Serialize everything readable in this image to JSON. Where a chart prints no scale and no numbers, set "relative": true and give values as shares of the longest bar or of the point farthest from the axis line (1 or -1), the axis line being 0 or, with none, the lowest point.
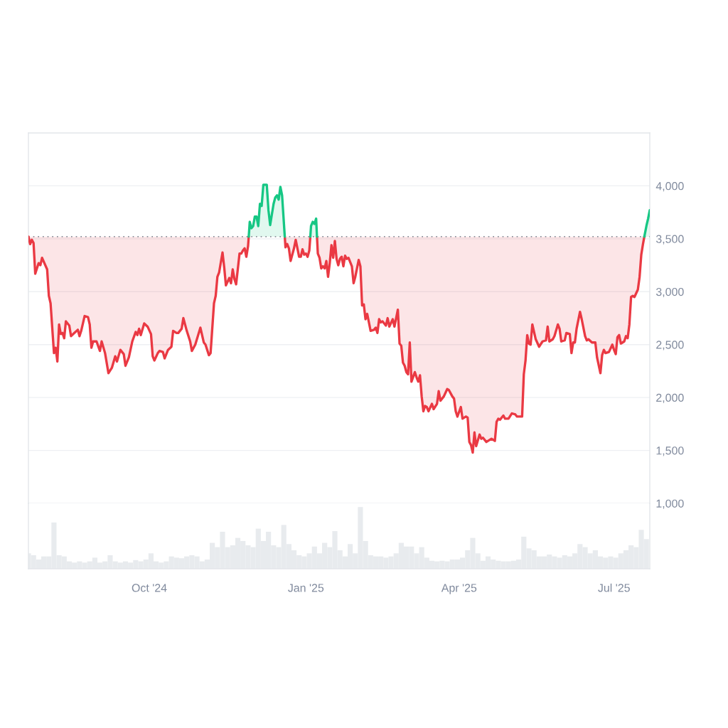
{
  "chart_data": [
    {
      "type": "line",
      "xlim": [
        "2024-07-22",
        "2025-07-22"
      ],
      "ylim": [
        1000,
        4500
      ],
      "yticks": [
        {
          "value": 1000,
          "label": "1,000"
        },
        {
          "value": 1500,
          "label": "1,500"
        },
        {
          "value": 2000,
          "label": "2,000"
        },
        {
          "value": 2500,
          "label": "2,500"
        },
        {
          "value": 3000,
          "label": "3,000"
        },
        {
          "value": 3500,
          "label": "3,500"
        },
        {
          "value": 4000,
          "label": "4,000"
        }
      ],
      "tick_labels": "y",
      "grid": "y",
      "ref_lines": [
        {
          "axis": "y",
          "value": 3520,
          "color": "#8a8f99",
          "line_style": "dotted"
        }
      ],
      "series": [
        {
          "color": "#ea3943",
          "x": [
            "2024-07-22",
            "2024-07-23",
            "2024-07-24",
            "2024-07-25",
            "2024-07-26",
            "2024-07-28",
            "2024-07-29",
            "2024-07-30",
            "2024-08-02",
            "2024-08-03",
            "2024-08-04",
            "2024-08-06",
            "2024-08-07",
            "2024-08-08",
            "2024-08-09",
            "2024-08-10",
            "2024-08-11",
            "2024-08-12",
            "2024-08-13",
            "2024-08-15",
            "2024-08-16",
            "2024-08-18",
            "2024-08-20",
            "2024-08-21",
            "2024-08-22",
            "2024-08-24",
            "2024-08-26",
            "2024-08-27",
            "2024-08-28",
            "2024-08-29",
            "2024-08-31",
            "2024-09-02",
            "2024-09-03",
            "2024-09-05",
            "2024-09-07",
            "2024-09-09",
            "2024-09-11",
            "2024-09-12",
            "2024-09-14",
            "2024-09-16",
            "2024-09-17",
            "2024-09-19",
            "2024-09-21",
            "2024-09-23",
            "2024-09-24",
            "2024-09-25",
            "2024-09-26",
            "2024-09-28",
            "2024-09-30",
            "2024-10-02",
            "2024-10-03",
            "2024-10-04",
            "2024-10-06",
            "2024-10-07",
            "2024-10-09",
            "2024-10-10",
            "2024-10-12",
            "2024-10-14",
            "2024-10-15",
            "2024-10-17",
            "2024-10-18",
            "2024-10-20",
            "2024-10-21",
            "2024-10-23",
            "2024-10-25",
            "2024-10-26",
            "2024-10-28",
            "2024-10-31",
            "2024-11-02",
            "2024-11-03",
            "2024-11-05",
            "2024-11-06",
            "2024-11-08",
            "2024-11-09",
            "2024-11-10",
            "2024-11-11",
            "2024-11-13",
            "2024-11-14",
            "2024-11-15",
            "2024-11-17",
            "2024-11-18",
            "2024-11-19",
            "2024-11-20",
            "2024-11-21",
            "2024-11-23",
            "2024-11-24",
            "2024-11-25",
            "2024-11-26",
            "2024-11-27",
            "2024-11-28",
            "2024-11-28T10:00",
            "2024-12-09",
            "2024-12-19T14:00",
            "2024-12-20",
            "2024-12-21",
            "2024-12-22",
            "2024-12-23",
            "2024-12-25",
            "2024-12-26",
            "2024-12-28",
            "2024-12-29",
            "2024-12-30",
            "2024-12-31",
            "2025-01-01",
            "2025-01-02",
            "2025-01-03",
            "2025-01-03T14:00",
            "2025-01-05",
            "2025-01-07T12:00",
            "2025-01-08",
            "2025-01-09",
            "2025-01-10",
            "2025-01-11",
            "2025-01-12",
            "2025-01-13",
            "2025-01-14",
            "2025-01-15",
            "2025-01-16",
            "2025-01-17",
            "2025-01-18",
            "2025-01-19",
            "2025-01-20",
            "2025-01-21",
            "2025-01-22",
            "2025-01-23",
            "2025-01-24",
            "2025-01-25",
            "2025-01-26",
            "2025-01-28",
            "2025-01-29",
            "2025-01-30",
            "2025-02-01",
            "2025-02-02",
            "2025-02-03",
            "2025-02-04",
            "2025-02-05",
            "2025-02-06",
            "2025-02-08",
            "2025-02-10",
            "2025-02-11",
            "2025-02-12",
            "2025-02-13",
            "2025-02-14",
            "2025-02-15",
            "2025-02-17",
            "2025-02-18",
            "2025-02-19",
            "2025-02-21",
            "2025-02-22",
            "2025-02-24",
            "2025-02-25",
            "2025-02-26",
            "2025-02-27",
            "2025-02-28",
            "2025-03-01",
            "2025-03-02",
            "2025-03-03",
            "2025-03-04",
            "2025-03-06",
            "2025-03-07",
            "2025-03-08",
            "2025-03-09",
            "2025-03-10",
            "2025-03-11",
            "2025-03-12",
            "2025-03-13",
            "2025-03-14",
            "2025-03-16",
            "2025-03-17",
            "2025-03-19",
            "2025-03-20",
            "2025-03-21",
            "2025-03-23",
            "2025-03-25",
            "2025-03-26",
            "2025-03-28",
            "2025-03-29",
            "2025-03-30",
            "2025-03-31",
            "2025-04-02",
            "2025-04-03",
            "2025-04-05",
            "2025-04-06",
            "2025-04-07",
            "2025-04-08",
            "2025-04-09",
            "2025-04-10",
            "2025-04-11",
            "2025-04-13",
            "2025-04-14",
            "2025-04-15",
            "2025-04-17",
            "2025-04-19",
            "2025-04-20",
            "2025-04-22",
            "2025-04-23",
            "2025-04-24",
            "2025-04-25",
            "2025-04-27",
            "2025-04-28",
            "2025-04-30",
            "2025-05-02",
            "2025-05-04",
            "2025-05-05",
            "2025-05-06",
            "2025-05-08",
            "2025-05-09",
            "2025-05-10",
            "2025-05-11",
            "2025-05-12",
            "2025-05-13",
            "2025-05-14",
            "2025-05-16",
            "2025-05-18",
            "2025-05-20",
            "2025-05-22",
            "2025-05-23",
            "2025-05-24",
            "2025-05-26",
            "2025-05-27",
            "2025-05-29",
            "2025-05-30",
            "2025-05-31",
            "2025-06-02",
            "2025-06-03",
            "2025-06-05",
            "2025-06-06",
            "2025-06-07",
            "2025-06-08",
            "2025-06-09",
            "2025-06-11",
            "2025-06-12",
            "2025-06-14",
            "2025-06-15",
            "2025-06-16",
            "2025-06-18",
            "2025-06-20",
            "2025-06-21",
            "2025-06-23",
            "2025-06-24",
            "2025-06-25",
            "2025-06-26",
            "2025-06-28",
            "2025-06-30",
            "2025-07-01",
            "2025-07-02",
            "2025-07-03",
            "2025-07-04",
            "2025-07-05",
            "2025-07-07",
            "2025-07-08",
            "2025-07-09",
            "2025-07-10",
            "2025-07-11",
            "2025-07-12",
            "2025-07-13",
            "2025-07-15",
            "2025-07-16",
            "2025-07-17",
            "2025-07-18",
            "2025-07-18T19:00"
          ],
          "values": [
            3520,
            3450,
            3490,
            3460,
            3170,
            3270,
            3250,
            3320,
            3210,
            2960,
            2890,
            2420,
            2470,
            2340,
            2690,
            2600,
            2610,
            2560,
            2720,
            2680,
            2580,
            2610,
            2640,
            2580,
            2630,
            2770,
            2760,
            2690,
            2470,
            2530,
            2530,
            2440,
            2530,
            2420,
            2230,
            2280,
            2390,
            2340,
            2450,
            2410,
            2300,
            2380,
            2530,
            2620,
            2590,
            2650,
            2590,
            2700,
            2670,
            2600,
            2390,
            2350,
            2420,
            2440,
            2430,
            2370,
            2450,
            2480,
            2630,
            2610,
            2610,
            2650,
            2750,
            2630,
            2530,
            2440,
            2500,
            2660,
            2520,
            2500,
            2400,
            2420,
            2890,
            2960,
            3140,
            3180,
            3370,
            3230,
            3060,
            3130,
            3080,
            3210,
            3120,
            3070,
            3360,
            3360,
            3390,
            3410,
            3330,
            3430,
            3520,
            null,
            3520,
            3420,
            3450,
            3410,
            3290,
            3410,
            3490,
            3330,
            3330,
            3400,
            3350,
            3360,
            3330,
            3390,
            3520,
            null,
            3520,
            3360,
            3320,
            3220,
            3240,
            3220,
            3290,
            3140,
            3270,
            3440,
            3320,
            3480,
            3310,
            3250,
            3310,
            3330,
            3240,
            3340,
            3310,
            3320,
            3240,
            3080,
            3140,
            3300,
            3240,
            2870,
            2880,
            2740,
            2790,
            2630,
            2640,
            2660,
            2610,
            2740,
            2710,
            2720,
            2680,
            2750,
            2670,
            2740,
            2670,
            2830,
            2510,
            2490,
            2330,
            2300,
            2240,
            2220,
            2520,
            2150,
            2240,
            2190,
            2150,
            2210,
            2010,
            1870,
            1920,
            1910,
            1870,
            1940,
            1890,
            1940,
            2060,
            1970,
            2010,
            2080,
            2070,
            2010,
            1990,
            1870,
            1820,
            1910,
            1800,
            1820,
            1810,
            1580,
            1550,
            1480,
            1670,
            1540,
            1650,
            1610,
            1620,
            1580,
            1600,
            1610,
            1590,
            1770,
            1800,
            1790,
            1830,
            1800,
            1800,
            1850,
            1840,
            1820,
            1820,
            1820,
            2220,
            2350,
            2590,
            2510,
            2500,
            2690,
            2550,
            2480,
            2530,
            2540,
            2670,
            2530,
            2550,
            2580,
            2690,
            2650,
            2530,
            2540,
            2610,
            2600,
            2420,
            2520,
            2520,
            2650,
            2810,
            2740,
            2580,
            2540,
            2550,
            2520,
            2520,
            2380,
            2230,
            2400,
            2450,
            2420,
            2430,
            2500,
            2450,
            2410,
            2570,
            2590,
            2510,
            2530,
            2580,
            2560,
            2690,
            2950,
            2960,
            2950,
            3020,
            3140,
            3350,
            3450,
            3520
          ],
          "lower": [
            3520,
            3450,
            3490,
            3460,
            3170,
            3270,
            3250,
            3320,
            3210,
            2960,
            2890,
            2420,
            2470,
            2340,
            2690,
            2600,
            2610,
            2560,
            2720,
            2680,
            2580,
            2610,
            2640,
            2580,
            2630,
            2770,
            2760,
            2690,
            2470,
            2530,
            2530,
            2440,
            2530,
            2420,
            2230,
            2280,
            2390,
            2340,
            2450,
            2410,
            2300,
            2380,
            2530,
            2620,
            2590,
            2650,
            2590,
            2700,
            2670,
            2600,
            2390,
            2350,
            2420,
            2440,
            2430,
            2370,
            2450,
            2480,
            2630,
            2610,
            2610,
            2650,
            2750,
            2630,
            2530,
            2440,
            2500,
            2660,
            2520,
            2500,
            2400,
            2420,
            2890,
            2960,
            3140,
            3180,
            3370,
            3230,
            3060,
            3130,
            3080,
            3210,
            3120,
            3070,
            3360,
            3360,
            3390,
            3410,
            3330,
            3430,
            3520,
            null,
            3520,
            3420,
            3450,
            3410,
            3290,
            3410,
            3490,
            3330,
            3330,
            3400,
            3350,
            3360,
            3330,
            3390,
            3520,
            null,
            3520,
            3360,
            3320,
            3220,
            3240,
            3220,
            3290,
            3140,
            3270,
            3440,
            3320,
            3480,
            3310,
            3250,
            3310,
            3330,
            3240,
            3340,
            3310,
            3320,
            3240,
            3080,
            3140,
            3300,
            3240,
            2870,
            2880,
            2740,
            2790,
            2630,
            2640,
            2660,
            2610,
            2740,
            2710,
            2720,
            2680,
            2750,
            2670,
            2740,
            2670,
            2830,
            2510,
            2490,
            2330,
            2300,
            2240,
            2220,
            2520,
            2150,
            2240,
            2190,
            2150,
            2210,
            2010,
            1870,
            1920,
            1910,
            1870,
            1940,
            1890,
            1940,
            2060,
            1970,
            2010,
            2080,
            2070,
            2010,
            1990,
            1870,
            1820,
            1910,
            1800,
            1820,
            1810,
            1580,
            1550,
            1480,
            1670,
            1540,
            1650,
            1610,
            1620,
            1580,
            1600,
            1610,
            1590,
            1770,
            1800,
            1790,
            1830,
            1800,
            1800,
            1850,
            1840,
            1820,
            1820,
            1820,
            2220,
            2350,
            2590,
            2510,
            2500,
            2690,
            2550,
            2480,
            2530,
            2540,
            2670,
            2530,
            2550,
            2580,
            2690,
            2650,
            2530,
            2540,
            2610,
            2600,
            2420,
            2520,
            2520,
            2650,
            2810,
            2740,
            2580,
            2540,
            2550,
            2520,
            2520,
            2380,
            2230,
            2400,
            2450,
            2420,
            2430,
            2500,
            2450,
            2410,
            2570,
            2590,
            2510,
            2530,
            2580,
            2560,
            2690,
            2950,
            2960,
            2950,
            3020,
            3140,
            3350,
            3450,
            3520
          ],
          "upper": [
            3520,
            3520,
            3520,
            3520,
            3520,
            3520,
            3520,
            3520,
            3520,
            3520,
            3520,
            3520,
            3520,
            3520,
            3520,
            3520,
            3520,
            3520,
            3520,
            3520,
            3520,
            3520,
            3520,
            3520,
            3520,
            3520,
            3520,
            3520,
            3520,
            3520,
            3520,
            3520,
            3520,
            3520,
            3520,
            3520,
            3520,
            3520,
            3520,
            3520,
            3520,
            3520,
            3520,
            3520,
            3520,
            3520,
            3520,
            3520,
            3520,
            3520,
            3520,
            3520,
            3520,
            3520,
            3520,
            3520,
            3520,
            3520,
            3520,
            3520,
            3520,
            3520,
            3520,
            3520,
            3520,
            3520,
            3520,
            3520,
            3520,
            3520,
            3520,
            3520,
            3520,
            3520,
            3520,
            3520,
            3520,
            3520,
            3520,
            3520,
            3520,
            3520,
            3520,
            3520,
            3520,
            3520,
            3520,
            3520,
            3520,
            3520,
            3520,
            null,
            3520,
            3520,
            3520,
            3520,
            3520,
            3520,
            3520,
            3520,
            3520,
            3520,
            3520,
            3520,
            3520,
            3520,
            3520,
            null,
            3520,
            3520,
            3520,
            3520,
            3520,
            3520,
            3520,
            3520,
            3520,
            3520,
            3520,
            3520,
            3520,
            3520,
            3520,
            3520,
            3520,
            3520,
            3520,
            3520,
            3520,
            3520,
            3520,
            3520,
            3520,
            3520,
            3520,
            3520,
            3520,
            3520,
            3520,
            3520,
            3520,
            3520,
            3520,
            3520,
            3520,
            3520,
            3520,
            3520,
            3520,
            3520,
            3520,
            3520,
            3520,
            3520,
            3520,
            3520,
            3520,
            3520,
            3520,
            3520,
            3520,
            3520,
            3520,
            3520,
            3520,
            3520,
            3520,
            3520,
            3520,
            3520,
            3520,
            3520,
            3520,
            3520,
            3520,
            3520,
            3520,
            3520,
            3520,
            3520,
            3520,
            3520,
            3520,
            3520,
            3520,
            3520,
            3520,
            3520,
            3520,
            3520,
            3520,
            3520,
            3520,
            3520,
            3520,
            3520,
            3520,
            3520,
            3520,
            3520,
            3520,
            3520,
            3520,
            3520,
            3520,
            3520,
            3520,
            3520,
            3520,
            3520,
            3520,
            3520,
            3520,
            3520,
            3520,
            3520,
            3520,
            3520,
            3520,
            3520,
            3520,
            3520,
            3520,
            3520,
            3520,
            3520,
            3520,
            3520,
            3520,
            3520,
            3520,
            3520,
            3520,
            3520,
            3520,
            3520,
            3520,
            3520,
            3520,
            3520,
            3520,
            3520,
            3520,
            3520,
            3520,
            3520,
            3520,
            3520,
            3520,
            3520,
            3520,
            3520,
            3520,
            3520,
            3520,
            3520,
            3520,
            3520,
            3520,
            3520,
            3520
          ]
        },
        {
          "color": "#16c784",
          "x": [
            "2024-11-28T10:00",
            "2024-11-29",
            "2024-11-30",
            "2024-12-01",
            "2024-12-02",
            "2024-12-03",
            "2024-12-04",
            "2024-12-05",
            "2024-12-06",
            "2024-12-07",
            "2024-12-09",
            "2024-12-10",
            "2024-12-11",
            "2024-12-13",
            "2024-12-14",
            "2024-12-15",
            "2024-12-16",
            "2024-12-17",
            "2024-12-18",
            "2024-12-19T14:00",
            "2024-12-28",
            "2025-01-03T14:00",
            "2025-01-04",
            "2025-01-05",
            "2025-01-06",
            "2025-01-07",
            "2025-01-07T12:00",
            "2025-03-01",
            "2025-07-18T19:00",
            "2025-07-20",
            "2025-07-21",
            "2025-07-22"
          ],
          "values": [
            3520,
            3660,
            3600,
            3620,
            3710,
            3710,
            3620,
            3830,
            3810,
            4010,
            4010,
            3770,
            3630,
            3830,
            3890,
            3910,
            3870,
            3990,
            3910,
            3520,
            null,
            3520,
            3620,
            3660,
            3640,
            3690,
            3520,
            null,
            3520,
            3620,
            3690,
            3770
          ],
          "lower": [
            3520,
            3520,
            3520,
            3520,
            3520,
            3520,
            3520,
            3520,
            3520,
            3520,
            3520,
            3520,
            3520,
            3520,
            3520,
            3520,
            3520,
            3520,
            3520,
            3520,
            null,
            3520,
            3520,
            3520,
            3520,
            3520,
            3520,
            null,
            3520,
            3520,
            3520,
            3520
          ],
          "upper": [
            3520,
            3660,
            3600,
            3620,
            3710,
            3710,
            3620,
            3830,
            3810,
            4010,
            4010,
            3770,
            3630,
            3830,
            3890,
            3910,
            3870,
            3990,
            3910,
            3520,
            null,
            3520,
            3620,
            3660,
            3640,
            3690,
            3520,
            null,
            3520,
            3620,
            3690,
            3770
          ]
        }
      ]
    },
    {
      "type": "bar",
      "relative": true,
      "color": "#e8ebee",
      "xlim": [
        "2024-07-22",
        "2025-07-22"
      ],
      "xticks": [
        {
          "value": "2024-10-01",
          "label": "Oct '24"
        },
        {
          "value": "2025-01-01",
          "label": "Jan '25"
        },
        {
          "value": "2025-04-01",
          "label": "Apr '25"
        },
        {
          "value": "2025-07-01",
          "label": "Jul '25"
        }
      ],
      "x": [
        "2024-07-22",
        "2024-07-25",
        "2024-07-28",
        "2024-07-31",
        "2024-08-03",
        "2024-08-06",
        "2024-08-09",
        "2024-08-12",
        "2024-08-15",
        "2024-08-18",
        "2024-08-21",
        "2024-08-24",
        "2024-08-27",
        "2024-08-30",
        "2024-09-02",
        "2024-09-05",
        "2024-09-08",
        "2024-09-11",
        "2024-09-14",
        "2024-09-17",
        "2024-09-20",
        "2024-09-23",
        "2024-09-26",
        "2024-09-29",
        "2024-10-02",
        "2024-10-05",
        "2024-10-08",
        "2024-10-11",
        "2024-10-14",
        "2024-10-17",
        "2024-10-20",
        "2024-10-23",
        "2024-10-26",
        "2024-10-29",
        "2024-11-01",
        "2024-11-04",
        "2024-11-07",
        "2024-11-10",
        "2024-11-13",
        "2024-11-16",
        "2024-11-19",
        "2024-11-22",
        "2024-11-25",
        "2024-11-28",
        "2024-12-01",
        "2024-12-04",
        "2024-12-07",
        "2024-12-10",
        "2024-12-13",
        "2024-12-16",
        "2024-12-19",
        "2024-12-22",
        "2024-12-25",
        "2024-12-28",
        "2024-12-31",
        "2025-01-03",
        "2025-01-06",
        "2025-01-09",
        "2025-01-12",
        "2025-01-15",
        "2025-01-18",
        "2025-01-21",
        "2025-01-24",
        "2025-01-27",
        "2025-01-30",
        "2025-02-02",
        "2025-02-05",
        "2025-02-08",
        "2025-02-11",
        "2025-02-14",
        "2025-02-17",
        "2025-02-20",
        "2025-02-23",
        "2025-02-26",
        "2025-03-01",
        "2025-03-04",
        "2025-03-07",
        "2025-03-10",
        "2025-03-13",
        "2025-03-16",
        "2025-03-19",
        "2025-03-22",
        "2025-03-25",
        "2025-03-28",
        "2025-03-31",
        "2025-04-03",
        "2025-04-06",
        "2025-04-09",
        "2025-04-12",
        "2025-04-15",
        "2025-04-18",
        "2025-04-21",
        "2025-04-24",
        "2025-04-27",
        "2025-04-30",
        "2025-05-03",
        "2025-05-06",
        "2025-05-09",
        "2025-05-12",
        "2025-05-15",
        "2025-05-18",
        "2025-05-21",
        "2025-05-24",
        "2025-05-27",
        "2025-05-30",
        "2025-06-02",
        "2025-06-05",
        "2025-06-08",
        "2025-06-11",
        "2025-06-14",
        "2025-06-17",
        "2025-06-20",
        "2025-06-23",
        "2025-06-26",
        "2025-06-29",
        "2025-07-02",
        "2025-07-05",
        "2025-07-08",
        "2025-07-11",
        "2025-07-14",
        "2025-07-17",
        "2025-07-20"
      ],
      "values": [
        0.25,
        0.22,
        0.15,
        0.2,
        0.2,
        0.75,
        0.22,
        0.2,
        0.12,
        0.1,
        0.12,
        0.1,
        0.12,
        0.18,
        0.1,
        0.12,
        0.22,
        0.12,
        0.1,
        0.12,
        0.1,
        0.14,
        0.12,
        0.15,
        0.25,
        0.12,
        0.1,
        0.12,
        0.2,
        0.18,
        0.17,
        0.2,
        0.22,
        0.2,
        0.12,
        0.15,
        0.42,
        0.35,
        0.6,
        0.35,
        0.38,
        0.5,
        0.45,
        0.38,
        0.35,
        0.65,
        0.45,
        0.6,
        0.38,
        0.35,
        0.71,
        0.4,
        0.3,
        0.22,
        0.2,
        0.25,
        0.36,
        0.25,
        0.42,
        0.35,
        0.61,
        0.3,
        0.2,
        0.4,
        0.25,
        1.0,
        0.45,
        0.22,
        0.2,
        0.2,
        0.18,
        0.2,
        0.25,
        0.42,
        0.36,
        0.36,
        0.25,
        0.35,
        0.18,
        0.13,
        0.12,
        0.13,
        0.12,
        0.15,
        0.15,
        0.18,
        0.3,
        0.5,
        0.25,
        0.13,
        0.2,
        0.15,
        0.13,
        0.12,
        0.12,
        0.13,
        0.15,
        0.52,
        0.33,
        0.3,
        0.2,
        0.2,
        0.23,
        0.2,
        0.18,
        0.22,
        0.2,
        0.25,
        0.4,
        0.35,
        0.25,
        0.3,
        0.2,
        0.18,
        0.2,
        0.18,
        0.25,
        0.3,
        0.38,
        0.35,
        0.63,
        0.48
      ]
    }
  ]
}
